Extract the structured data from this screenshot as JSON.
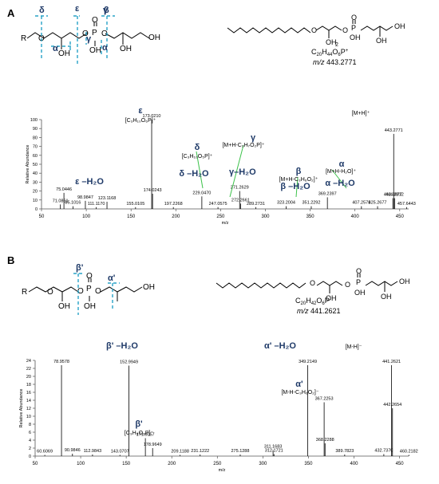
{
  "panels": [
    {
      "letter": "A",
      "formula_parts": [
        "C",
        "20",
        "H",
        "44",
        "O",
        "6",
        "P",
        "+"
      ],
      "mz_prefix": "m/z",
      "mz_value": "443.2771",
      "cleavage_labels": [
        "δ",
        "ε",
        "γ",
        "β",
        "α",
        "α",
        "γ"
      ],
      "atom_labels": [
        "R",
        "O",
        "O",
        "P",
        "O",
        "O",
        "OH",
        "OH",
        "OH",
        "OH"
      ],
      "struct_atom_labels": [
        "O",
        "O",
        "P",
        "O",
        "OH",
        "OH",
        "OH",
        "OH",
        "2"
      ]
    },
    {
      "letter": "B",
      "formula_parts": [
        "C",
        "20",
        "H",
        "42",
        "O",
        "6",
        "P",
        "-"
      ],
      "mz_prefix": "m/z",
      "mz_value": "441.2621",
      "cleavage_labels": [
        "β'",
        "α'"
      ],
      "atom_labels": [
        "R",
        "O",
        "O",
        "P",
        "O",
        "O",
        "OH",
        "OH",
        "OH"
      ],
      "struct_atom_labels": [
        "O",
        "O",
        "P",
        "O",
        "OH",
        "OH",
        "OH",
        "OH"
      ]
    }
  ],
  "chart_data": [
    {
      "type": "bar",
      "xlabel": "m/z",
      "ylabel": "Relative Abundance",
      "xlim": [
        50,
        460
      ],
      "ylim": [
        0,
        100
      ],
      "xticks": [
        50,
        100,
        150,
        200,
        250,
        300,
        350,
        400,
        450
      ],
      "yticks": [
        0,
        10,
        20,
        30,
        40,
        50,
        60,
        70,
        80,
        90,
        100
      ],
      "peaks": [
        {
          "mz": 71.0861,
          "rel": 5
        },
        {
          "mz": 75.0446,
          "rel": 18
        },
        {
          "mz": 85.1016,
          "rel": 3
        },
        {
          "mz": 98.9847,
          "rel": 9
        },
        {
          "mz": 111.117,
          "rel": 2
        },
        {
          "mz": 123.1168,
          "rel": 8
        },
        {
          "mz": 155.0105,
          "rel": 2
        },
        {
          "mz": 173.021,
          "rel": 100
        },
        {
          "mz": 174.0243,
          "rel": 17
        },
        {
          "mz": 197.2268,
          "rel": 2
        },
        {
          "mz": 229.047,
          "rel": 14
        },
        {
          "mz": 247.0575,
          "rel": 2
        },
        {
          "mz": 271.2629,
          "rel": 20
        },
        {
          "mz": 272.2661,
          "rel": 6
        },
        {
          "mz": 289.2731,
          "rel": 2
        },
        {
          "mz": 323.2004,
          "rel": 3
        },
        {
          "mz": 351.2292,
          "rel": 3
        },
        {
          "mz": 369.2397,
          "rel": 13
        },
        {
          "mz": 407.2578,
          "rel": 3
        },
        {
          "mz": 425.2677,
          "rel": 3
        },
        {
          "mz": 442.3677,
          "rel": 12
        },
        {
          "mz": 443.2771,
          "rel": 84
        },
        {
          "mz": 444.2812,
          "rel": 12
        },
        {
          "mz": 457.6443,
          "rel": 2
        }
      ],
      "peak_labels": [
        {
          "text": "71.0861",
          "mz": 71.0861,
          "rel": 5
        },
        {
          "text": "75.0446",
          "mz": 75.0446,
          "rel": 18
        },
        {
          "text": "85.1016",
          "mz": 85.1016,
          "rel": 3
        },
        {
          "text": "98.9847",
          "mz": 98.9847,
          "rel": 9
        },
        {
          "text": "111.1170",
          "mz": 111.117,
          "rel": 2
        },
        {
          "text": "123.1168",
          "mz": 123.1168,
          "rel": 8
        },
        {
          "text": "155.0105",
          "mz": 155.0105,
          "rel": 2
        },
        {
          "text": "173.0210",
          "mz": 173.021,
          "rel": 100
        },
        {
          "text": "174.0243",
          "mz": 174.0243,
          "rel": 17
        },
        {
          "text": "197.2268",
          "mz": 197.2268,
          "rel": 2
        },
        {
          "text": "229.0470",
          "mz": 229.047,
          "rel": 14
        },
        {
          "text": "247.0575",
          "mz": 247.0575,
          "rel": 2
        },
        {
          "text": "271.2629",
          "mz": 271.2629,
          "rel": 20
        },
        {
          "text": "272.2661",
          "mz": 272.2661,
          "rel": 6
        },
        {
          "text": "289.2731",
          "mz": 289.2731,
          "rel": 2
        },
        {
          "text": "323.2004",
          "mz": 323.2004,
          "rel": 3
        },
        {
          "text": "351.2292",
          "mz": 351.2292,
          "rel": 3
        },
        {
          "text": "369.2397",
          "mz": 369.2397,
          "rel": 13
        },
        {
          "text": "407.2578",
          "mz": 407.2578,
          "rel": 3
        },
        {
          "text": "425.2677",
          "mz": 425.2677,
          "rel": 3
        },
        {
          "text": "442.3677",
          "mz": 442.3677,
          "rel": 12
        },
        {
          "text": "443.2771",
          "mz": 443.2771,
          "rel": 84
        },
        {
          "text": "444.2812",
          "mz": 444.2812,
          "rel": 12
        },
        {
          "text": "457.6443",
          "mz": 457.6443,
          "rel": 2
        }
      ],
      "annotations": [
        {
          "text": "ε",
          "color": "#1f3a68",
          "bold": true
        },
        {
          "text": "[C₃H₁₀O₆P]⁺",
          "color": "#000000",
          "bold": false
        },
        {
          "text": "[M+H]⁺",
          "color": "#000000",
          "bold": false
        },
        {
          "text": "δ",
          "color": "#1f3a68",
          "bold": true
        },
        {
          "text": "[C₃H₁₀O₅P]⁺",
          "color": "#000000",
          "bold": false
        },
        {
          "text": "γ–H₂O",
          "color": "#1f3a68",
          "bold": true
        },
        {
          "text": "γ",
          "color": "#1f3a68",
          "bold": true
        },
        {
          "text": "[M+H-C₃H₇O₂P]⁺",
          "color": "#000000",
          "bold": false
        },
        {
          "text": "δ –H₂O",
          "color": "#1f3a68",
          "bold": true
        },
        {
          "text": "ε –H₂O",
          "color": "#1f3a68",
          "bold": true
        },
        {
          "text": "β",
          "color": "#1f3a68",
          "bold": true
        },
        {
          "text": "[M+H-C₃H₆O₂]⁺",
          "color": "#000000",
          "bold": false
        },
        {
          "text": "β –H₂O",
          "color": "#1f3a68",
          "bold": true
        },
        {
          "text": "α",
          "color": "#1f3a68",
          "bold": true
        },
        {
          "text": "[M+H-H₂O]⁺",
          "color": "#000000",
          "bold": false
        },
        {
          "text": "α –H₂O",
          "color": "#1f3a68",
          "bold": true
        }
      ]
    },
    {
      "type": "bar",
      "xlabel": "m/z",
      "ylabel": "Relative Abundance",
      "xlim": [
        50,
        460
      ],
      "ylim": [
        0,
        24
      ],
      "xticks": [
        50,
        100,
        150,
        200,
        250,
        300,
        350,
        400,
        450
      ],
      "yticks": [
        0,
        2,
        4,
        6,
        8,
        10,
        12,
        14,
        16,
        18,
        20,
        22,
        24
      ],
      "peaks": [
        {
          "mz": 60.6069,
          "rel": 0.3
        },
        {
          "mz": 78.9578,
          "rel": 22.8
        },
        {
          "mz": 90.9846,
          "rel": 0.6
        },
        {
          "mz": 112.9843,
          "rel": 0.4
        },
        {
          "mz": 143.0707,
          "rel": 0.3
        },
        {
          "mz": 152.9949,
          "rel": 22.7
        },
        {
          "mz": 171.0057,
          "rel": 4.5
        },
        {
          "mz": 178.9649,
          "rel": 2
        },
        {
          "mz": 209.1188,
          "rel": 0.3
        },
        {
          "mz": 231.1222,
          "rel": 0.4
        },
        {
          "mz": 275.1288,
          "rel": 0.4
        },
        {
          "mz": 311.1683,
          "rel": 1.5
        },
        {
          "mz": 312.1721,
          "rel": 0.5
        },
        {
          "mz": 349.2149,
          "rel": 22.8
        },
        {
          "mz": 367.2253,
          "rel": 13.5
        },
        {
          "mz": 368.2288,
          "rel": 3.2
        },
        {
          "mz": 389.7823,
          "rel": 0.4
        },
        {
          "mz": 432.737,
          "rel": 0.5
        },
        {
          "mz": 441.2621,
          "rel": 22.8
        },
        {
          "mz": 442.2654,
          "rel": 12
        },
        {
          "mz": 460.2182,
          "rel": 0.3
        }
      ],
      "peak_labels": [
        {
          "text": "60.6069",
          "mz": 60.6069,
          "rel": 0.3
        },
        {
          "text": "78.9578",
          "mz": 78.9578,
          "rel": 22.8
        },
        {
          "text": "90.9846",
          "mz": 90.9846,
          "rel": 0.6
        },
        {
          "text": "112.9843",
          "mz": 112.9843,
          "rel": 0.4
        },
        {
          "text": "143.0707",
          "mz": 143.0707,
          "rel": 0.3
        },
        {
          "text": "152.9949",
          "mz": 152.9949,
          "rel": 22.7
        },
        {
          "text": "171.0057",
          "mz": 171.0057,
          "rel": 4.5
        },
        {
          "text": "178.9649",
          "mz": 178.9649,
          "rel": 2
        },
        {
          "text": "209.1188",
          "mz": 209.1188,
          "rel": 0.3
        },
        {
          "text": "231.1222",
          "mz": 231.1222,
          "rel": 0.4
        },
        {
          "text": "275.1288",
          "mz": 275.1288,
          "rel": 0.4
        },
        {
          "text": "311.1683",
          "mz": 311.1683,
          "rel": 1.5
        },
        {
          "text": "312.1721",
          "mz": 312.1721,
          "rel": 0.5
        },
        {
          "text": "349.2149",
          "mz": 349.2149,
          "rel": 22.8
        },
        {
          "text": "367.2253",
          "mz": 367.2253,
          "rel": 13.5
        },
        {
          "text": "368.2288",
          "mz": 368.2288,
          "rel": 3.2
        },
        {
          "text": "389.7823",
          "mz": 389.7823,
          "rel": 0.4
        },
        {
          "text": "432.7370",
          "mz": 432.737,
          "rel": 0.5
        },
        {
          "text": "441.2621",
          "mz": 441.2621,
          "rel": 22.8
        },
        {
          "text": "442.2654",
          "mz": 442.2654,
          "rel": 12
        },
        {
          "text": "460.2182",
          "mz": 460.2182,
          "rel": 0.3
        }
      ],
      "annotations": [
        {
          "text": "β' –H₂O",
          "color": "#1f3a68",
          "bold": true
        },
        {
          "text": "α' –H₂O",
          "color": "#1f3a68",
          "bold": true
        },
        {
          "text": "[M-H]⁻",
          "color": "#000000",
          "bold": false
        },
        {
          "text": "α'",
          "color": "#1f3a68",
          "bold": true
        },
        {
          "text": "[M-H-C₃H₆O₂]⁻",
          "color": "#000000",
          "bold": false
        },
        {
          "text": "β'",
          "color": "#1f3a68",
          "bold": true
        },
        {
          "text": "[C₃H₈O₆P]⁻",
          "color": "#000000",
          "bold": false
        }
      ]
    }
  ],
  "colors": {
    "ink": "#000000",
    "annotation": "#1f3a68",
    "cleavage": "#29a3c7",
    "leader": "#3cc24a",
    "axis": "#555555"
  }
}
